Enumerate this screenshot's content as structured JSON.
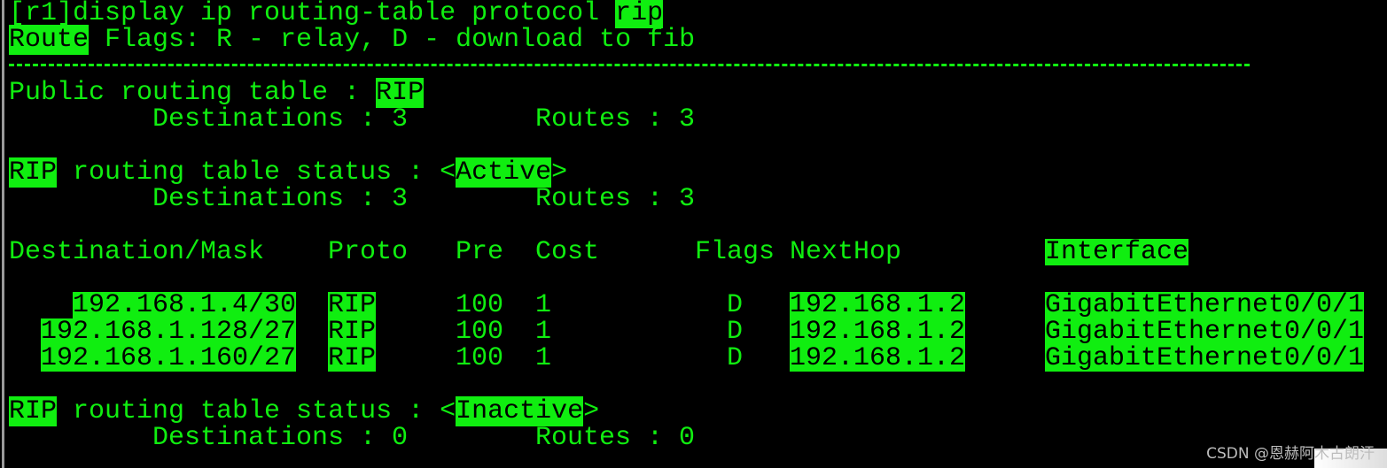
{
  "terminal": {
    "prompt": "[r1]display ip routing-table protocol ",
    "command_arg": "rip",
    "flags_label": "Route",
    "flags_text": " Flags: R - relay, D - download to fib",
    "public_label": "Public routing table : ",
    "public_proto": "RIP",
    "public_dest": "Destinations : 3",
    "public_routes": "Routes : 3",
    "active": {
      "proto": "RIP",
      "text": " routing table status : <",
      "status": "Active",
      "close": ">",
      "dest": "Destinations : 3",
      "routes": "Routes : 3"
    },
    "inactive": {
      "proto": "RIP",
      "text": " routing table status : <",
      "status": "Inactive",
      "close": ">",
      "dest": "Destinations : 0",
      "routes": "Routes : 0"
    },
    "columns": [
      "Destination/Mask",
      "Proto",
      "Pre",
      "Cost",
      "Flags",
      "NextHop",
      "Interface"
    ],
    "rows": [
      {
        "dest": "192.168.1.4/30",
        "proto": "RIP",
        "pre": "100",
        "cost": "1",
        "flags": "D",
        "nexthop": "192.168.1.2",
        "interface": "GigabitEthernet0/0/1"
      },
      {
        "dest": "192.168.1.128/27",
        "proto": "RIP",
        "pre": "100",
        "cost": "1",
        "flags": "D",
        "nexthop": "192.168.1.2",
        "interface": "GigabitEthernet0/0/1"
      },
      {
        "dest": "192.168.1.160/27",
        "proto": "RIP",
        "pre": "100",
        "cost": "1",
        "flags": "D",
        "nexthop": "192.168.1.2",
        "interface": "GigabitEthernet0/0/1"
      }
    ]
  },
  "watermark": "CSDN @恩赫阿木古朗汗",
  "colors": {
    "background": "#000000",
    "text": "#10ee10",
    "highlight": "#10ee10"
  }
}
